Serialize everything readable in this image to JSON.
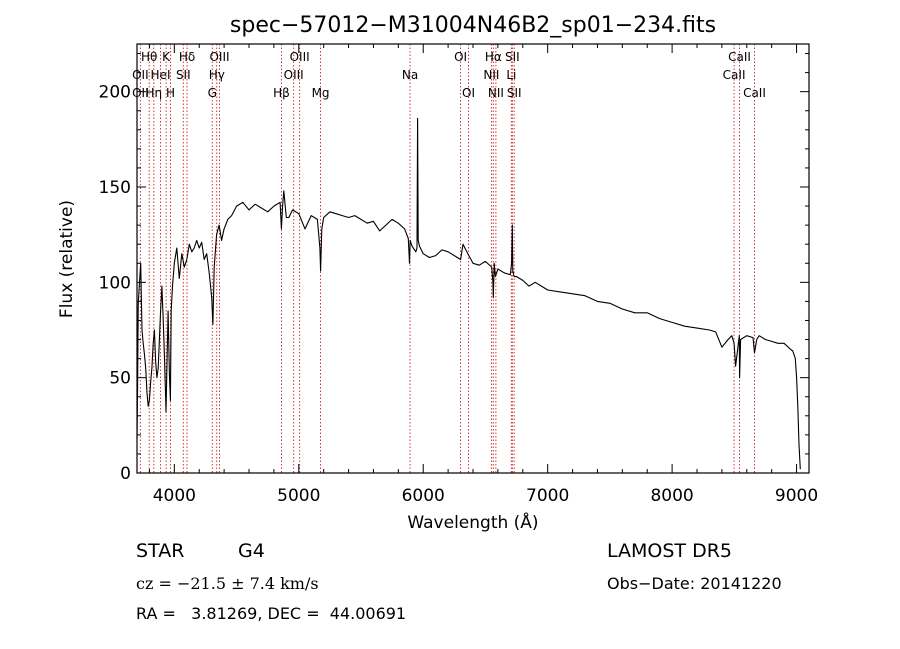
{
  "chart_data": {
    "type": "line",
    "title": "spec−57012−M31004N46B2_sp01−234.fits",
    "xlabel": "Wavelength (Å)",
    "ylabel": "Flux (relative)",
    "xlim": [
      3700,
      9100
    ],
    "ylim": [
      0,
      225
    ],
    "xticks": [
      4000,
      5000,
      6000,
      7000,
      8000,
      9000
    ],
    "yticks": [
      0,
      50,
      100,
      150,
      200
    ],
    "grid": false,
    "series": [
      {
        "x": [
          3700,
          3705,
          3710,
          3720,
          3730,
          3740,
          3750,
          3760,
          3770,
          3780,
          3790,
          3800,
          3810,
          3820,
          3830,
          3840,
          3850,
          3860,
          3870,
          3880,
          3890,
          3900,
          3910,
          3920,
          3930,
          3933,
          3940,
          3950,
          3960,
          3968,
          3975,
          3985,
          4000,
          4020,
          4040,
          4060,
          4080,
          4100,
          4120,
          4140,
          4160,
          4180,
          4200,
          4220,
          4240,
          4260,
          4280,
          4300,
          4310,
          4320,
          4340,
          4360,
          4380,
          4400,
          4430,
          4460,
          4500,
          4550,
          4600,
          4650,
          4700,
          4750,
          4800,
          4850,
          4860,
          4870,
          4880,
          4900,
          4920,
          4950,
          5000,
          5050,
          5100,
          5150,
          5170,
          5175,
          5185,
          5200,
          5250,
          5300,
          5350,
          5400,
          5450,
          5500,
          5550,
          5600,
          5650,
          5700,
          5750,
          5800,
          5850,
          5880,
          5890,
          5895,
          5900,
          5910,
          5940,
          5950,
          5955,
          5960,
          5970,
          6000,
          6050,
          6100,
          6150,
          6200,
          6250,
          6300,
          6320,
          6350,
          6400,
          6450,
          6500,
          6550,
          6560,
          6563,
          6570,
          6580,
          6600,
          6650,
          6700,
          6710,
          6716,
          6720,
          6730,
          6750,
          6800,
          6850,
          6900,
          6950,
          7000,
          7100,
          7200,
          7300,
          7400,
          7500,
          7600,
          7700,
          7800,
          7900,
          8000,
          8100,
          8200,
          8300,
          8350,
          8400,
          8450,
          8480,
          8498,
          8510,
          8540,
          8542,
          8550,
          8600,
          8650,
          8662,
          8680,
          8700,
          8750,
          8800,
          8850,
          8900,
          8950,
          8970,
          8990,
          9000,
          9010,
          9020,
          9030
        ],
        "y": [
          18,
          45,
          88,
          100,
          110,
          75,
          68,
          62,
          55,
          42,
          35,
          38,
          48,
          55,
          68,
          75,
          58,
          50,
          55,
          70,
          85,
          98,
          82,
          62,
          40,
          32,
          55,
          85,
          52,
          38,
          85,
          98,
          110,
          118,
          102,
          115,
          108,
          112,
          120,
          116,
          118,
          122,
          118,
          121,
          112,
          115,
          105,
          92,
          78,
          108,
          125,
          130,
          122,
          128,
          133,
          135,
          140,
          142,
          138,
          141,
          139,
          137,
          140,
          142,
          128,
          140,
          148,
          134,
          134,
          138,
          136,
          128,
          135,
          133,
          118,
          106,
          128,
          134,
          137,
          136,
          135,
          134,
          135,
          133,
          131,
          132,
          127,
          130,
          133,
          131,
          128,
          123,
          110,
          122,
          121,
          119,
          116,
          118,
          186,
          122,
          119,
          115,
          113,
          114,
          117,
          116,
          114,
          112,
          120,
          116,
          110,
          109,
          111,
          108,
          100,
          92,
          110,
          103,
          107,
          105,
          104,
          110,
          130,
          106,
          103,
          103,
          101,
          98,
          100,
          98,
          96,
          95,
          94,
          93,
          90,
          89,
          86,
          84,
          84,
          81,
          79,
          77,
          76,
          75,
          74,
          66,
          70,
          72,
          68,
          56,
          72,
          50,
          70,
          72,
          71,
          63,
          70,
          72,
          70,
          69,
          68,
          68,
          65,
          64,
          60,
          50,
          35,
          15,
          2
        ]
      }
    ],
    "spectral_lines": [
      {
        "label": "Hθ",
        "x": 3798,
        "row": 0
      },
      {
        "label": "OII",
        "x": 3727,
        "row": 1
      },
      {
        "label": "OII",
        "x": 3727,
        "row": 2
      },
      {
        "label": "Hη",
        "x": 3835,
        "row": 2
      },
      {
        "label": "HeI",
        "x": 3889,
        "row": 1
      },
      {
        "label": "K",
        "x": 3934,
        "row": 0
      },
      {
        "label": "H",
        "x": 3969,
        "row": 2
      },
      {
        "label": "Hδ",
        "x": 4102,
        "row": 0
      },
      {
        "label": "SII",
        "x": 4072,
        "row": 1
      },
      {
        "label": "OIII",
        "x": 4363,
        "row": 0
      },
      {
        "label": "Hγ",
        "x": 4341,
        "row": 1
      },
      {
        "label": "G",
        "x": 4305,
        "row": 2
      },
      {
        "label": "OIII",
        "x": 5007,
        "row": 0
      },
      {
        "label": "OIII",
        "x": 4959,
        "row": 1
      },
      {
        "label": "Hβ",
        "x": 4861,
        "row": 2
      },
      {
        "label": "Mg",
        "x": 5175,
        "row": 2
      },
      {
        "label": "Na",
        "x": 5894,
        "row": 1
      },
      {
        "label": "OI",
        "x": 6300,
        "row": 0
      },
      {
        "label": "OI",
        "x": 6364,
        "row": 2
      },
      {
        "label": "Hα",
        "x": 6563,
        "row": 0
      },
      {
        "label": "NII",
        "x": 6548,
        "row": 1
      },
      {
        "label": "NII",
        "x": 6584,
        "row": 2
      },
      {
        "label": "SII",
        "x": 6716,
        "row": 0
      },
      {
        "label": "Li",
        "x": 6708,
        "row": 1
      },
      {
        "label": "SII",
        "x": 6731,
        "row": 2
      },
      {
        "label": "CaII",
        "x": 8542,
        "row": 0
      },
      {
        "label": "CaII",
        "x": 8498,
        "row": 1
      },
      {
        "label": "CaII",
        "x": 8662,
        "row": 2
      }
    ]
  },
  "footer": {
    "class_label": "STAR",
    "subclass": "G4",
    "survey": "LAMOST DR5",
    "cz": "cz = −21.5 ± 7.4 km/s",
    "obs_date": "Obs−Date: 20141220",
    "coords": "RA =   3.81269, DEC =  44.00691"
  },
  "colors": {
    "spectrum": "#000000",
    "line_markers": "#cc2222"
  }
}
